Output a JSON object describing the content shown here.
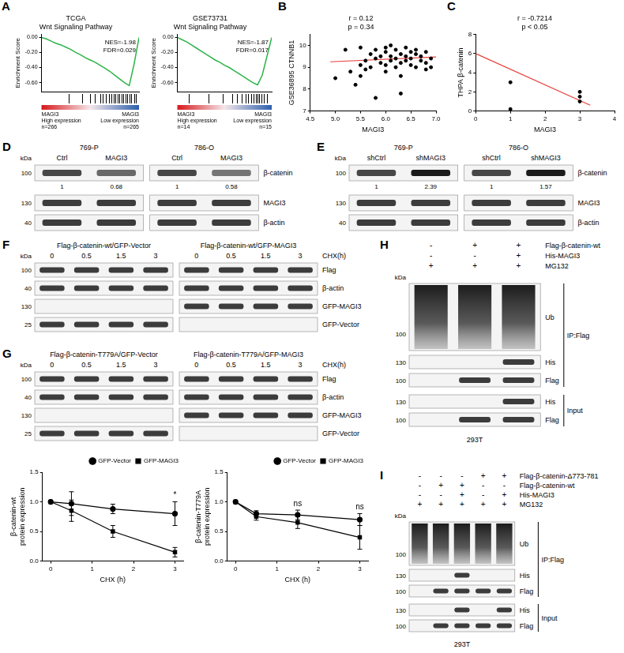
{
  "chart_data": [
    {
      "panel": "A",
      "type": "line",
      "title": "TCGA",
      "subtitle": "Wnt Signaling Pathway",
      "y_label": "Enrichment Score",
      "x": [
        0,
        5,
        10,
        15,
        20,
        25,
        30,
        35,
        40,
        45,
        50,
        55,
        60,
        65,
        70,
        75,
        80,
        85,
        90,
        95,
        100
      ],
      "values": [
        0,
        -0.02,
        -0.05,
        -0.08,
        -0.1,
        -0.13,
        -0.16,
        -0.2,
        -0.23,
        -0.27,
        -0.3,
        -0.33,
        -0.37,
        -0.41,
        -0.45,
        -0.5,
        -0.55,
        -0.6,
        -0.64,
        -0.35,
        0
      ],
      "color": "#2db34a",
      "xlim": [
        0,
        100
      ],
      "ylim": [
        -0.72,
        0.04
      ],
      "yticks": [
        {
          "value": 0,
          "label": "0.00"
        },
        {
          "value": -0.2,
          "label": "-0.20"
        },
        {
          "value": -0.4,
          "label": "-0.40"
        },
        {
          "value": -0.6,
          "label": "-0.60"
        }
      ],
      "tick_labels": "y",
      "grid": false,
      "annotations": [
        "NES=-1.98",
        "FDR=0.029"
      ],
      "hits": [
        28,
        42,
        50,
        55,
        60,
        63,
        66,
        69,
        72,
        74,
        76,
        78,
        80,
        82,
        84,
        86,
        88,
        90,
        92,
        95,
        97
      ],
      "groups": [
        {
          "label": "MAGI3 High expression",
          "n": "n=266"
        },
        {
          "label": "MAGI3 Low expression",
          "n": "n=265"
        }
      ]
    },
    {
      "type": "line",
      "title": "GSE73731",
      "subtitle": "Wnt Signaling Pathway",
      "y_label": "Enrichment Score",
      "x": [
        0,
        5,
        10,
        15,
        20,
        25,
        30,
        35,
        40,
        45,
        50,
        55,
        60,
        65,
        70,
        75,
        80,
        85,
        90,
        95,
        100
      ],
      "values": [
        0,
        -0.03,
        -0.06,
        -0.1,
        -0.14,
        -0.18,
        -0.22,
        -0.26,
        -0.3,
        -0.33,
        -0.37,
        -0.4,
        -0.44,
        -0.48,
        -0.52,
        -0.56,
        -0.6,
        -0.63,
        -0.5,
        -0.25,
        0
      ],
      "color": "#2db34a",
      "xlim": [
        0,
        100
      ],
      "ylim": [
        -0.72,
        0.04
      ],
      "yticks": [
        {
          "value": 0,
          "label": "0.00"
        },
        {
          "value": -0.2,
          "label": "-0.20"
        },
        {
          "value": -0.4,
          "label": "-0.40"
        },
        {
          "value": -0.6,
          "label": "-0.60"
        }
      ],
      "tick_labels": "y",
      "grid": false,
      "annotations": [
        "NES=-1.87",
        "FDR=0.017"
      ],
      "hits": [
        12,
        33,
        48,
        58,
        63,
        68,
        72,
        75,
        78,
        81,
        83,
        85,
        87,
        89,
        92,
        95
      ],
      "groups": [
        {
          "label": "MAGI3 High expression",
          "n": "n=14"
        },
        {
          "label": "MAGI3 Low expression",
          "n": "n=15"
        }
      ]
    },
    {
      "panel": "B",
      "type": "scatter",
      "x_label": "MAGI3",
      "y_label": "GSE36895 CTNNB1",
      "x": [
        5.0,
        5.2,
        5.3,
        5.4,
        5.5,
        5.5,
        5.6,
        5.6,
        5.7,
        5.7,
        5.8,
        5.8,
        5.8,
        5.9,
        5.9,
        6.0,
        6.0,
        6.0,
        6.1,
        6.1,
        6.1,
        6.2,
        6.2,
        6.2,
        6.3,
        6.3,
        6.3,
        6.4,
        6.4,
        6.4,
        6.5,
        6.5,
        6.5,
        6.6,
        6.6,
        6.6,
        6.7,
        6.7,
        6.8,
        6.8,
        6.9,
        6.9,
        6.3,
        5.5,
        6.0,
        6.8
      ],
      "values": [
        8.5,
        9.8,
        8.8,
        8.2,
        9.1,
        9.9,
        9.3,
        8.9,
        9.6,
        9.0,
        9.4,
        9.8,
        7.6,
        9.2,
        9.5,
        9.1,
        9.7,
        8.8,
        9.3,
        10.0,
        9.5,
        9.4,
        9.0,
        9.8,
        9.6,
        9.2,
        8.6,
        9.3,
        9.9,
        9.5,
        9.7,
        9.1,
        9.4,
        9.6,
        9.0,
        9.8,
        9.3,
        9.5,
        9.2,
        9.7,
        9.4,
        9.0,
        7.8,
        8.6,
        9.9,
        8.9
      ],
      "color": "#000000",
      "fit": {
        "x": [
          4.9,
          7.0
        ],
        "values": [
          9.25,
          9.47
        ],
        "color": "#e8413c"
      },
      "xlim": [
        4.5,
        7.0
      ],
      "xticks": [
        4.5,
        {
          "value": 5,
          "label": "5.0"
        },
        5.5,
        {
          "value": 6,
          "label": "6.0"
        },
        6.5,
        {
          "value": 7,
          "label": "7.0"
        }
      ],
      "ylim": [
        7,
        10.5
      ],
      "yticks": [
        7,
        8,
        9,
        10
      ],
      "grid": false,
      "annotations": [
        "r = 0.12",
        "p = 0.34"
      ]
    },
    {
      "panel": "C",
      "type": "scatter",
      "x_label": "MAGI3",
      "y_label": "THPA β-catenin",
      "x": [
        1,
        1,
        3,
        3,
        3
      ],
      "values": [
        3,
        0.2,
        2,
        1.5,
        1
      ],
      "color": "#000000",
      "fit": {
        "x": [
          0,
          3.3
        ],
        "values": [
          6,
          0.6
        ],
        "color": "#e8413c"
      },
      "xlim": [
        0,
        4
      ],
      "xticks": [
        0,
        1,
        2,
        3,
        4
      ],
      "ylim": [
        0,
        8
      ],
      "yticks": [
        0,
        2,
        4,
        6,
        8
      ],
      "grid": false,
      "annotations": [
        "r = -0.7214",
        "p < 0.05"
      ]
    },
    {
      "type": "line",
      "x_label": "CHX (h)",
      "y_label": "β-catenin-wt protein expression",
      "x": [
        0,
        0.5,
        1.5,
        3
      ],
      "series": [
        {
          "name": "GFP-Vector",
          "color": "#000000",
          "marker": "circle",
          "values": [
            1,
            0.97,
            0.88,
            0.8
          ],
          "errors": [
            0,
            0.2,
            0.08,
            0.2
          ]
        },
        {
          "name": "GFP-MAGI3",
          "color": "#000000",
          "marker": "square",
          "values": [
            1,
            0.85,
            0.5,
            0.15
          ],
          "errors": [
            0,
            0.18,
            0.1,
            0.08
          ]
        }
      ],
      "xlim": [
        -0.2,
        3.2
      ],
      "xticks": [
        0,
        1,
        2,
        3
      ],
      "ylim": [
        0,
        1.5
      ],
      "yticks": [
        {
          "value": 0,
          "label": "0.0"
        },
        {
          "value": 0.5,
          "label": "0.5"
        },
        {
          "value": 1,
          "label": "1.0"
        },
        {
          "value": 1.5,
          "label": "1.5"
        }
      ],
      "legend": "top-right",
      "grid": false,
      "annotations": [
        {
          "x": 3,
          "text": "*"
        }
      ]
    },
    {
      "type": "line",
      "x_label": "CHX (h)",
      "y_label": "β-catenin-T779A protein expression",
      "x": [
        0,
        0.5,
        1.5,
        3
      ],
      "series": [
        {
          "name": "GFP-Vector",
          "color": "#000000",
          "marker": "circle",
          "values": [
            1,
            0.8,
            0.78,
            0.7
          ],
          "errors": [
            0,
            0.05,
            0.08,
            0.1
          ]
        },
        {
          "name": "GFP-MAGI3",
          "color": "#000000",
          "marker": "square",
          "values": [
            1,
            0.75,
            0.65,
            0.4
          ],
          "errors": [
            0,
            0.06,
            0.1,
            0.2
          ]
        }
      ],
      "xlim": [
        -0.2,
        3.2
      ],
      "xticks": [
        0,
        1,
        2,
        3
      ],
      "ylim": [
        0,
        1.5
      ],
      "yticks": [
        {
          "value": 0,
          "label": "0.0"
        },
        {
          "value": 0.5,
          "label": "0.5"
        },
        {
          "value": 1,
          "label": "1.0"
        },
        {
          "value": 1.5,
          "label": "1.5"
        }
      ],
      "legend": "top-right",
      "grid": false,
      "annotations": [
        {
          "x": 1.5,
          "text": "ns"
        },
        {
          "x": 3,
          "text": "ns"
        }
      ]
    }
  ],
  "blots": [
    {
      "panel": "D",
      "kda_unit": "kDa",
      "groups": [
        "769-P",
        "786-O"
      ],
      "lanes": [
        "Ctrl",
        "MAGI3",
        "Ctrl",
        "MAGI3"
      ],
      "rows": [
        {
          "name": "β-catenin",
          "kda": 100,
          "quant": [
            1,
            0.68,
            1,
            0.58
          ]
        },
        {
          "name": "MAGI3",
          "kda": 130
        },
        {
          "name": "β-actin",
          "kda": 40
        }
      ]
    },
    {
      "panel": "E",
      "kda_unit": "kDa",
      "groups": [
        "769-P",
        "786-O"
      ],
      "lanes": [
        "shCtrl",
        "shMAGI3",
        "shCtrl",
        "shMAGI3"
      ],
      "rows": [
        {
          "name": "β-catenin",
          "kda": 100,
          "quant": [
            1,
            2.39,
            1,
            1.57
          ]
        },
        {
          "name": "MAGI3",
          "kda": 130
        },
        {
          "name": "β-actin",
          "kda": 40
        }
      ]
    },
    {
      "panel": "F",
      "kda_unit": "kDa",
      "groups": [
        "Flag-β-catenin-wt/GFP-Vector",
        "Flag-β-catenin-wt/GFP-MAGI3"
      ],
      "lane_title": "CHX(h)",
      "lanes": [
        "0",
        "0.5",
        "1.5",
        "3",
        "0",
        "0.5",
        "1.5",
        "3"
      ],
      "rows": [
        {
          "name": "Flag",
          "kda": 100
        },
        {
          "name": "β-actin",
          "kda": 40
        },
        {
          "name": "GFP-MAGI3",
          "kda": 130,
          "bands": [
            false,
            false,
            false,
            false,
            true,
            true,
            true,
            true
          ]
        },
        {
          "name": "GFP-Vector",
          "kda": 25,
          "bands": [
            true,
            true,
            true,
            true,
            false,
            false,
            false,
            false
          ]
        }
      ]
    },
    {
      "panel": "G",
      "kda_unit": "kDa",
      "groups": [
        "Flag-β-catenin-T779A/GFP-Vector",
        "Flag-β-catenin-T779A/GFP-MAGI3"
      ],
      "lane_title": "CHX(h)",
      "lanes": [
        "0",
        "0.5",
        "1.5",
        "3",
        "0",
        "0.5",
        "1.5",
        "3"
      ],
      "rows": [
        {
          "name": "Flag",
          "kda": 100
        },
        {
          "name": "β-actin",
          "kda": 40
        },
        {
          "name": "GFP-MAGI3",
          "kda": 130,
          "bands": [
            false,
            false,
            false,
            false,
            true,
            true,
            true,
            true
          ]
        },
        {
          "name": "GFP-Vector",
          "kda": 25,
          "bands": [
            true,
            true,
            true,
            true,
            false,
            false,
            false,
            false
          ]
        }
      ]
    },
    {
      "panel": "H",
      "kda_unit": "kDa",
      "cell_line": "293T",
      "conditions": [
        {
          "name": "Flag-β-catenin-wt",
          "marks": [
            "-",
            "+",
            "+"
          ]
        },
        {
          "name": "His-MAGI3",
          "marks": [
            "-",
            "-",
            "+"
          ]
        },
        {
          "name": "MG132",
          "marks": [
            "+",
            "+",
            "+"
          ]
        }
      ],
      "sections": [
        {
          "label": "IP:Flag",
          "rows": [
            {
              "name": "Ub",
              "kda": 100,
              "smear": [
                true,
                true,
                true
              ]
            },
            {
              "name": "His",
              "kda": 130,
              "bands": [
                false,
                false,
                true
              ]
            },
            {
              "name": "Flag",
              "kda": 100,
              "bands": [
                false,
                true,
                true
              ]
            }
          ]
        },
        {
          "label": "Input",
          "rows": [
            {
              "name": "His",
              "kda": 130,
              "bands": [
                false,
                false,
                true
              ]
            },
            {
              "name": "Flag",
              "kda": 100,
              "bands": [
                false,
                true,
                true
              ]
            }
          ]
        }
      ]
    },
    {
      "panel": "I",
      "kda_unit": "kDa",
      "cell_line": "293T",
      "conditions": [
        {
          "name": "Flag-β-catenin-Δ773-781",
          "marks": [
            "-",
            "-",
            "-",
            "+",
            "+"
          ]
        },
        {
          "name": "Flag-β-catenin-wt",
          "marks": [
            "-",
            "+",
            "+",
            "-",
            "-"
          ]
        },
        {
          "name": "His-MAGI3",
          "marks": [
            "-",
            "-",
            "+",
            "-",
            "+"
          ]
        },
        {
          "name": "MG132",
          "marks": [
            "+",
            "+",
            "+",
            "+",
            "+"
          ]
        }
      ],
      "sections": [
        {
          "label": "IP:Flag",
          "rows": [
            {
              "name": "Ub",
              "kda": 100,
              "smear": [
                true,
                true,
                true,
                true,
                true
              ]
            },
            {
              "name": "His",
              "kda": 130,
              "bands": [
                false,
                false,
                true,
                false,
                false
              ]
            },
            {
              "name": "Flag",
              "kda": 100,
              "bands": [
                false,
                true,
                true,
                true,
                true
              ]
            }
          ]
        },
        {
          "label": "Input",
          "rows": [
            {
              "name": "His",
              "kda": 130,
              "bands": [
                false,
                false,
                true,
                false,
                true
              ]
            },
            {
              "name": "Flag",
              "kda": 100,
              "bands": [
                false,
                true,
                true,
                true,
                true
              ]
            }
          ]
        }
      ]
    }
  ]
}
